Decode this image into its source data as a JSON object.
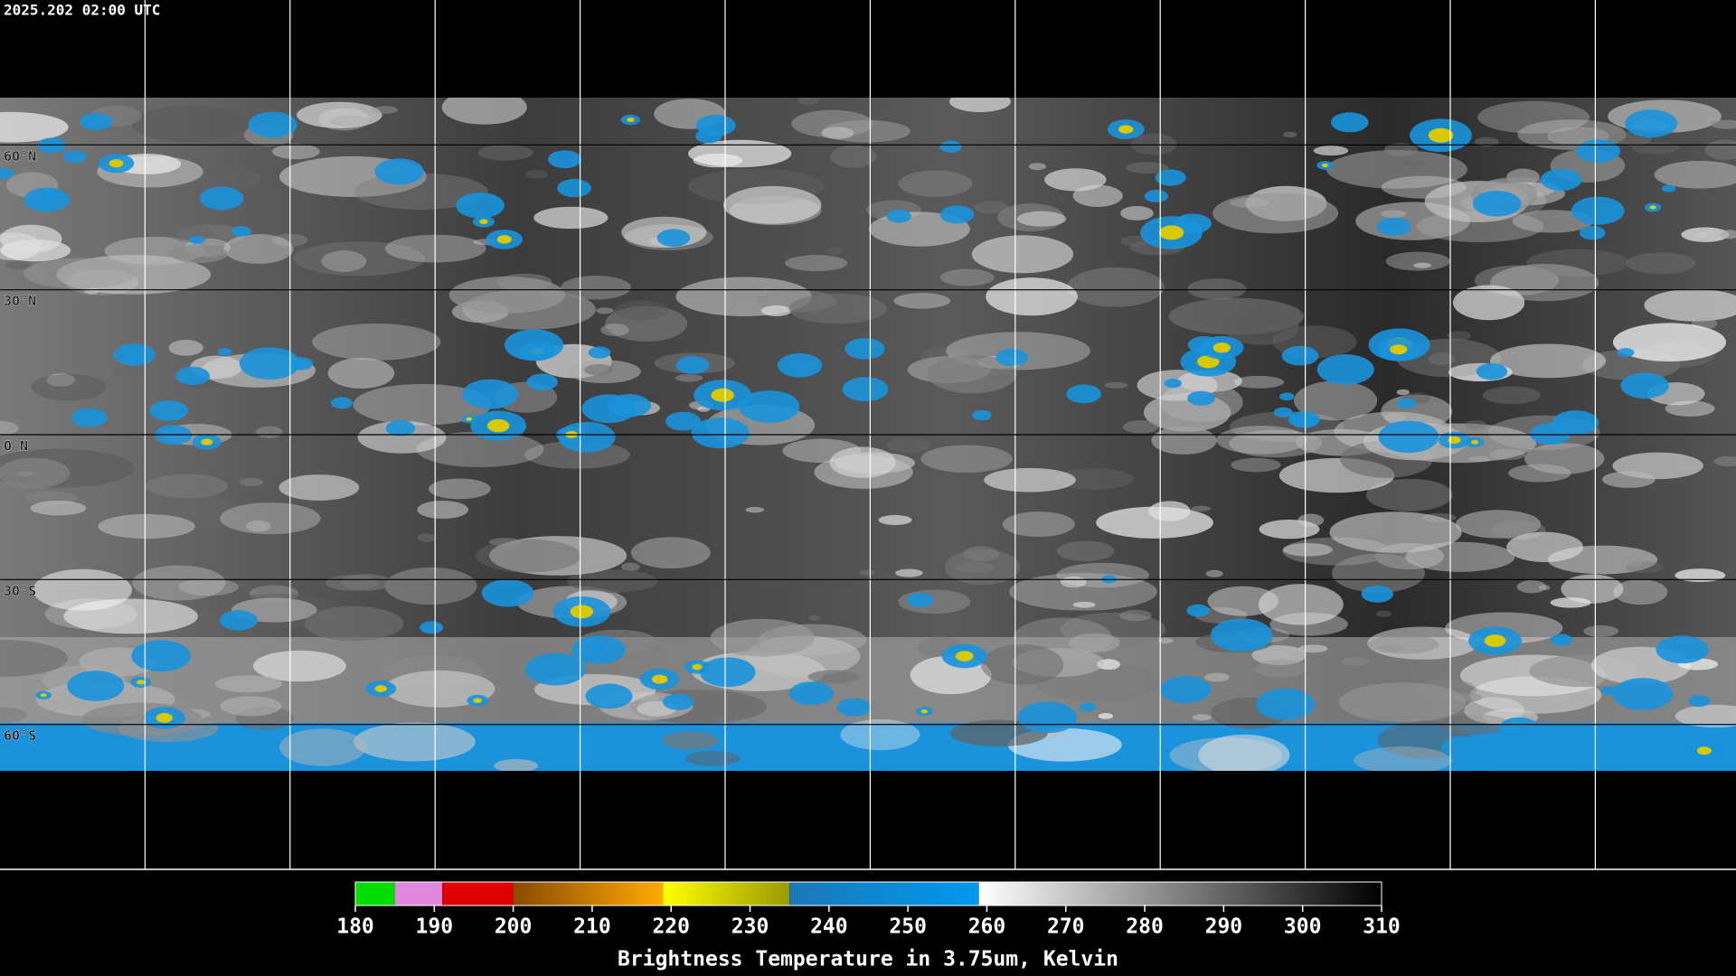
{
  "header": {
    "timestamp": "2025.202 02:00 UTC"
  },
  "map": {
    "ylim": [
      -90,
      90
    ],
    "parallels": [
      {
        "value": 60,
        "label": "60°N"
      },
      {
        "value": 30,
        "label": "30°N"
      },
      {
        "value": 0,
        "label": "0°N"
      },
      {
        "value": -30,
        "label": "30°S"
      },
      {
        "value": -60,
        "label": "60°S"
      }
    ]
  },
  "colorbar": {
    "title": "Brightness Temperature in 3.75um, Kelvin",
    "lim": [
      180,
      310
    ],
    "ticks": [
      180,
      190,
      200,
      210,
      220,
      230,
      240,
      250,
      260,
      270,
      280,
      290,
      300,
      310
    ],
    "segments": [
      {
        "from": 180,
        "to": 185,
        "colors": [
          "#00dd00",
          "#00dd00"
        ]
      },
      {
        "from": 185,
        "to": 191,
        "colors": [
          "#e088e0",
          "#e088e0"
        ]
      },
      {
        "from": 191,
        "to": 200,
        "colors": [
          "#e00000",
          "#e00000"
        ]
      },
      {
        "from": 200,
        "to": 219,
        "colors": [
          "#8a4a00",
          "#ffaa00"
        ]
      },
      {
        "from": 219,
        "to": 235,
        "colors": [
          "#ffff00",
          "#9a9a00"
        ]
      },
      {
        "from": 235,
        "to": 259,
        "colors": [
          "#1a78b8",
          "#0099f0"
        ]
      },
      {
        "from": 259,
        "to": 310,
        "colors": [
          "#ffffff",
          "#000000"
        ]
      }
    ]
  }
}
